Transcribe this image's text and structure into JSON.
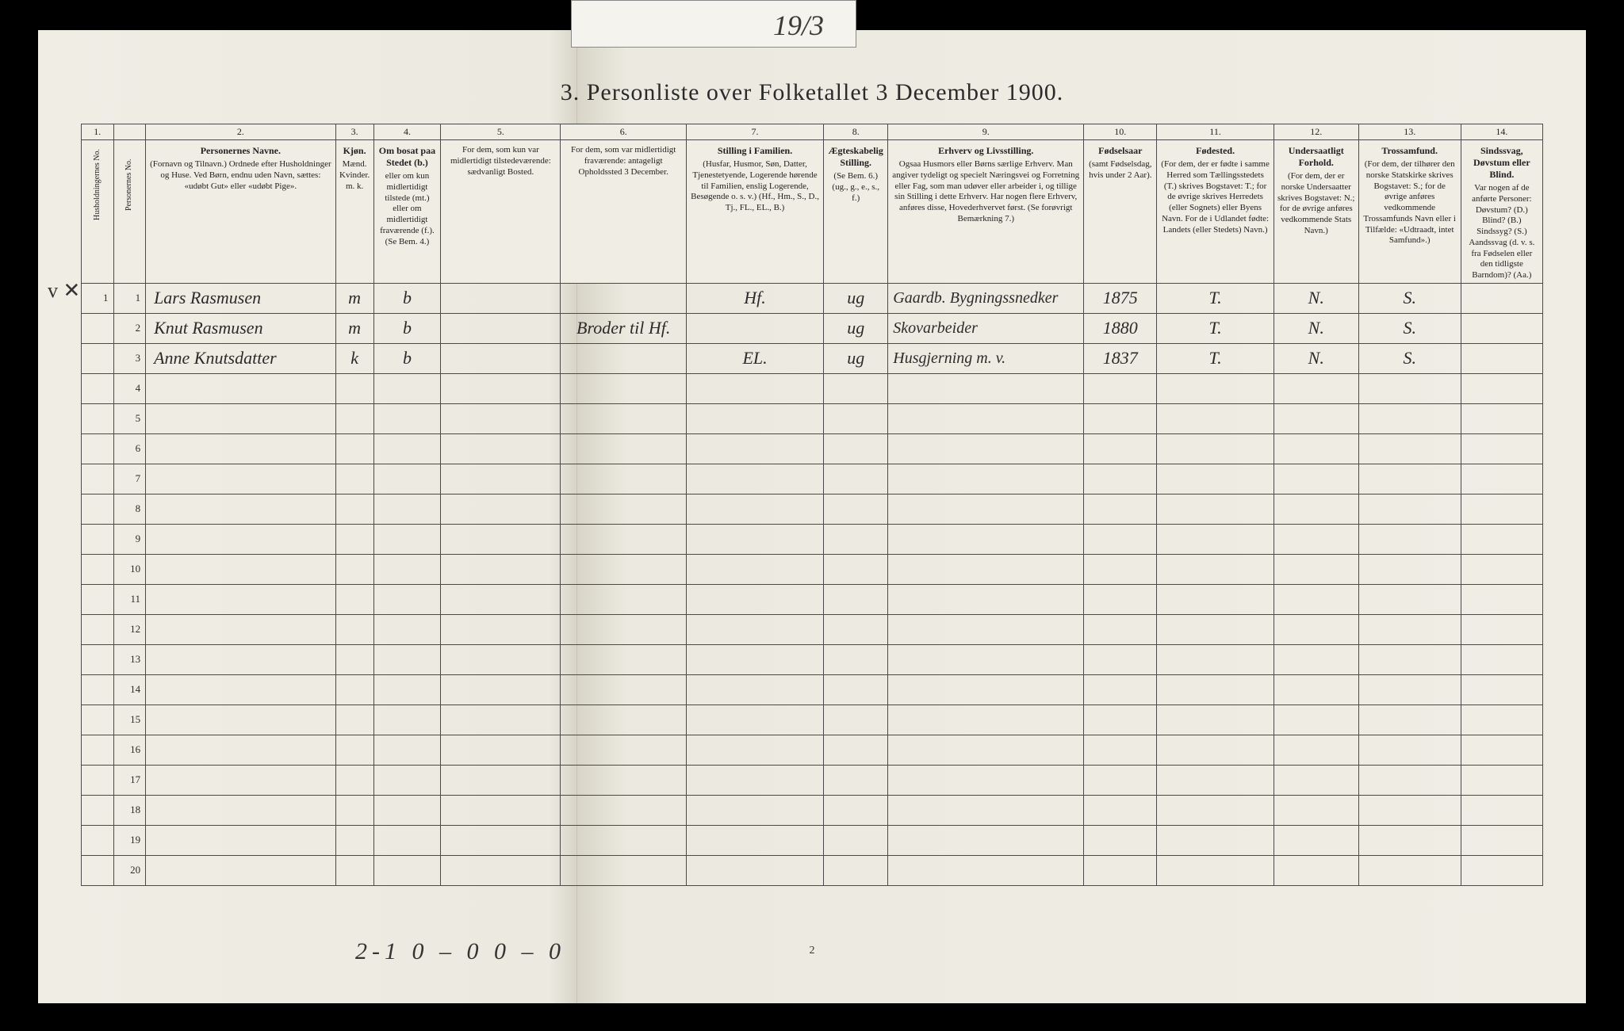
{
  "tab_label": "19/3",
  "title": "3.  Personliste over Folketallet 3 December 1900.",
  "margin_mark": "v ✕",
  "bottom_tally": "2-1   0 – 0    0 – 0",
  "page_number": "2",
  "col_nums": [
    "1.",
    "",
    "2.",
    "3.",
    "4.",
    "5.",
    "6.",
    "7.",
    "8.",
    "9.",
    "10.",
    "11.",
    "12.",
    "13.",
    "14."
  ],
  "col_widths_pct": [
    2.2,
    2.2,
    13.0,
    2.6,
    4.6,
    8.2,
    8.6,
    9.4,
    4.4,
    13.4,
    5.0,
    8.0,
    5.8,
    7.0,
    5.6
  ],
  "headers": {
    "c1": "Husholdningernes No.",
    "c1b": "Personernes No.",
    "c2_h": "Personernes Navne.",
    "c2": "(Fornavn og Tilnavn.)\nOrdnede efter Husholdninger og Huse.\nVed Børn, endnu uden Navn, sættes: «udøbt Gut» eller «udøbt Pige».",
    "c3_h": "Kjøn.",
    "c3": "Mænd.\nKvinder.\nm. k.",
    "c4_h": "Om bosat paa Stedet (b.)",
    "c4": "eller om kun midlertidigt tilstede (mt.) eller om midlertidigt fraværende (f.).\n(Se Bem. 4.)",
    "c5": "For dem, som kun var midlertidigt tilstedeværende:\nsædvanligt Bosted.",
    "c6": "For dem, som var midlertidigt fraværende:\nantageligt Opholdssted 3 December.",
    "c7_h": "Stilling i Familien.",
    "c7": "(Husfar, Husmor, Søn, Datter, Tjenestetyende, Logerende hørende til Familien, enslig Logerende, Besøgende o. s. v.)\n(Hf., Hm., S., D., Tj., FL., EL., B.)",
    "c8_h": "Ægteskabelig Stilling.",
    "c8": "(Se Bem. 6.)\n(ug., g., e., s., f.)",
    "c9_h": "Erhverv og Livsstilling.",
    "c9": "Ogsaa Husmors eller Børns særlige Erhverv. Man angiver tydeligt og specielt Næringsvei og Forretning eller Fag, som man udøver eller arbeider i, og tillige sin Stilling i dette Erhverv. Har nogen flere Erhverv, anføres disse, Hovederhvervet først.\n(Se forøvrigt Bemærkning 7.)",
    "c10_h": "Fødselsaar",
    "c10": "(samt Fødselsdag, hvis under 2 Aar).",
    "c11_h": "Fødested.",
    "c11": "(For dem, der er fødte i samme Herred som Tællingsstedets (T.) skrives Bogstavet: T.; for de øvrige skrives Herredets (eller Sognets) eller Byens Navn. For de i Udlandet fødte: Landets (eller Stedets) Navn.)",
    "c12_h": "Undersaatligt Forhold.",
    "c12": "(For dem, der er norske Undersaatter skrives Bogstavet: N.; for de øvrige anføres vedkommende Stats Navn.)",
    "c13_h": "Trossamfund.",
    "c13": "(For dem, der tilhører den norske Statskirke skrives Bogstavet: S.; for de øvrige anføres vedkommende Trossamfunds Navn eller i Tilfælde: «Udtraadt, intet Samfund».)",
    "c14_h": "Sindssvag, Døvstum eller Blind.",
    "c14": "Var nogen af de anførte Personer: Døvstum? (D.) Blind? (B.) Sindssyg? (S.) Aandssvag (d. v. s. fra Fødselen eller den tidligste Barndom)? (Aa.)"
  },
  "rows": [
    {
      "hh": "1",
      "pn": "1",
      "name": "Lars Rasmusen",
      "sex": "m",
      "res": "b",
      "away": "",
      "temp": "",
      "fam": "Hf.",
      "mar": "ug",
      "occ": "Gaardb. Bygningssnedker",
      "year": "1875",
      "birthpl": "T.",
      "nat": "N.",
      "rel": "S.",
      "dis": ""
    },
    {
      "hh": "",
      "pn": "2",
      "name": "Knut Rasmusen",
      "sex": "m",
      "res": "b",
      "away": "",
      "temp": "Broder til Hf.",
      "fam": "",
      "mar": "ug",
      "occ": "Skovarbeider",
      "year": "1880",
      "birthpl": "T.",
      "nat": "N.",
      "rel": "S.",
      "dis": ""
    },
    {
      "hh": "",
      "pn": "3",
      "name": "Anne Knutsdatter",
      "sex": "k",
      "res": "b",
      "away": "",
      "temp": "",
      "fam": "EL.",
      "mar": "ug",
      "occ": "Husgjerning m. v.",
      "year": "1837",
      "birthpl": "T.",
      "nat": "N.",
      "rel": "S.",
      "dis": ""
    }
  ],
  "blank_rows": 17
}
